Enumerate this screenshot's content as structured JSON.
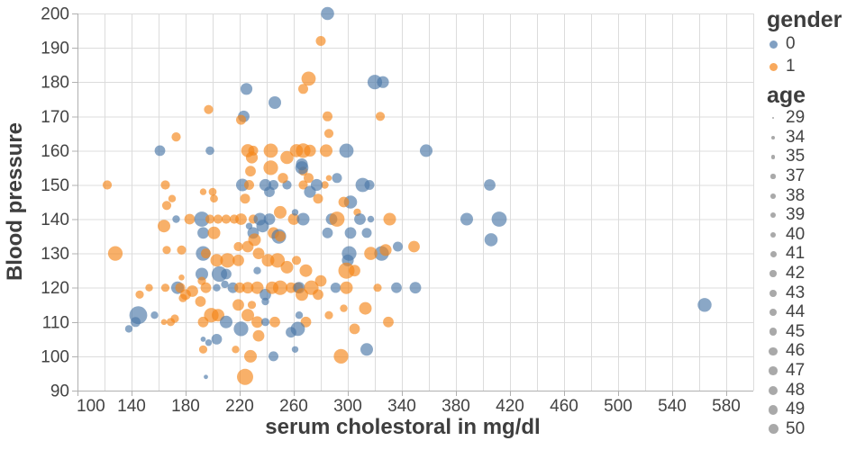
{
  "chart_data": {
    "type": "scatter",
    "title": "",
    "xlabel": "serum cholestoral in mg/dl",
    "ylabel": "Blood pressure",
    "x_domain": [
      100,
      600
    ],
    "y_domain": [
      90,
      200
    ],
    "x_tick_labels": [
      100,
      140,
      180,
      220,
      260,
      300,
      340,
      380,
      420,
      460,
      500,
      540,
      580
    ],
    "x_grid_step": 20,
    "y_tick_step": 10,
    "grid": true,
    "legend_position": "right",
    "legend": {
      "gender": {
        "title": "gender",
        "items": [
          {
            "label": "0",
            "color": "#4c78a8"
          },
          {
            "label": "1",
            "color": "#f58518"
          }
        ]
      },
      "age": {
        "title": "age",
        "items": [
          29,
          34,
          35,
          37,
          38,
          39,
          40,
          41,
          42,
          43,
          44,
          45,
          46,
          47,
          48,
          49,
          50
        ]
      }
    },
    "colors": {
      "gender0": "#4c78a8",
      "gender1": "#f58518",
      "grid": "#dcdcdc",
      "axis": "#b0b0b0",
      "tick_label": "#434343",
      "axis_title": "#3e3e3e",
      "legend_symbol": "#9a9a9a"
    },
    "point_opacity": 0.65,
    "points_format": [
      "serum_cholestoral",
      "blood_pressure",
      "gender",
      "age"
    ],
    "points": [
      [
        225,
        178,
        0,
        55
      ],
      [
        246,
        174,
        0,
        57
      ],
      [
        197,
        172,
        1,
        48
      ],
      [
        223,
        170,
        0,
        54
      ],
      [
        221,
        169,
        1,
        50
      ],
      [
        173,
        164,
        1,
        48
      ],
      [
        161,
        160,
        0,
        52
      ],
      [
        198,
        160,
        0,
        47
      ],
      [
        226,
        160,
        1,
        58
      ],
      [
        230,
        160,
        1,
        50
      ],
      [
        243,
        160,
        1,
        61
      ],
      [
        243,
        155,
        1,
        62
      ],
      [
        228,
        154,
        1,
        52
      ],
      [
        122,
        150,
        1,
        48
      ],
      [
        165,
        150,
        1,
        48
      ],
      [
        222,
        150,
        0,
        57
      ],
      [
        227,
        150,
        1,
        50
      ],
      [
        239,
        150,
        0,
        55
      ],
      [
        245,
        150,
        0,
        50
      ],
      [
        255,
        150,
        0,
        48
      ],
      [
        200,
        148,
        1,
        45
      ],
      [
        252,
        152,
        1,
        51
      ],
      [
        262,
        160,
        1,
        58
      ],
      [
        170,
        146,
        1,
        44
      ],
      [
        193,
        148,
        1,
        42
      ],
      [
        201,
        146,
        1,
        45
      ],
      [
        224,
        146,
        1,
        50
      ],
      [
        242,
        148,
        0,
        52
      ],
      [
        229,
        158,
        1,
        55
      ],
      [
        255,
        158,
        1,
        58
      ],
      [
        283,
        150,
        1,
        44
      ],
      [
        311,
        150,
        0,
        61
      ],
      [
        316,
        150,
        0,
        50
      ],
      [
        292,
        152,
        0,
        50
      ],
      [
        267,
        154,
        1,
        48
      ],
      [
        266,
        156,
        0,
        55
      ],
      [
        285,
        200,
        0,
        58
      ],
      [
        280,
        192,
        1,
        50
      ],
      [
        271,
        181,
        1,
        61
      ],
      [
        267,
        178,
        1,
        50
      ],
      [
        320,
        180,
        0,
        62
      ],
      [
        326,
        180,
        0,
        55
      ],
      [
        324,
        170,
        1,
        48
      ],
      [
        285,
        170,
        1,
        50
      ],
      [
        286,
        165,
        1,
        48
      ],
      [
        267,
        160,
        1,
        62
      ],
      [
        272,
        160,
        1,
        55
      ],
      [
        284,
        160,
        1,
        57
      ],
      [
        299,
        160,
        0,
        61
      ],
      [
        358,
        160,
        0,
        57
      ],
      [
        266,
        155,
        0,
        58
      ],
      [
        271,
        152,
        1,
        50
      ],
      [
        277,
        150,
        0,
        55
      ],
      [
        267,
        150,
        1,
        48
      ],
      [
        272,
        148,
        0,
        55
      ],
      [
        278,
        146,
        1,
        50
      ],
      [
        286,
        152,
        1,
        40
      ],
      [
        405,
        150,
        0,
        54
      ],
      [
        302,
        145,
        0,
        58
      ],
      [
        297,
        145,
        1,
        52
      ],
      [
        166,
        144,
        1,
        48
      ],
      [
        173,
        140,
        0,
        44
      ],
      [
        183,
        140,
        1,
        52
      ],
      [
        192,
        140,
        0,
        63
      ],
      [
        198,
        140,
        1,
        48
      ],
      [
        204,
        140,
        1,
        48
      ],
      [
        210,
        140,
        1,
        48
      ],
      [
        216,
        140,
        1,
        48
      ],
      [
        221,
        140,
        1,
        54
      ],
      [
        227,
        138,
        0,
        42
      ],
      [
        230,
        140,
        1,
        48
      ],
      [
        235,
        140,
        0,
        57
      ],
      [
        242,
        140,
        0,
        54
      ],
      [
        250,
        142,
        1,
        57
      ],
      [
        260,
        140,
        1,
        54
      ],
      [
        261,
        142,
        0,
        42
      ],
      [
        267,
        140,
        0,
        57
      ],
      [
        288,
        140,
        0,
        54
      ],
      [
        292,
        140,
        1,
        63
      ],
      [
        307,
        142,
        1,
        44
      ],
      [
        309,
        140,
        0,
        54
      ],
      [
        317,
        140,
        0,
        42
      ],
      [
        331,
        140,
        1,
        57
      ],
      [
        388,
        140,
        0,
        57
      ],
      [
        412,
        140,
        0,
        63
      ],
      [
        164,
        138,
        1,
        57
      ],
      [
        193,
        136,
        0,
        54
      ],
      [
        201,
        136,
        1,
        57
      ],
      [
        230,
        136,
        0,
        54
      ],
      [
        237,
        138,
        0,
        57
      ],
      [
        245,
        136,
        1,
        54
      ],
      [
        249,
        135,
        0,
        62
      ],
      [
        250,
        135,
        1,
        52
      ],
      [
        231,
        134,
        1,
        57
      ],
      [
        406,
        134,
        0,
        58
      ],
      [
        285,
        136,
        0,
        52
      ],
      [
        302,
        136,
        0,
        54
      ],
      [
        314,
        136,
        0,
        50
      ],
      [
        219,
        132,
        1,
        48
      ],
      [
        226,
        132,
        1,
        54
      ],
      [
        337,
        132,
        0,
        50
      ],
      [
        349,
        132,
        1,
        54
      ],
      [
        325,
        130,
        0,
        62
      ],
      [
        328,
        131,
        1,
        55
      ],
      [
        317,
        130,
        1,
        58
      ],
      [
        301,
        130,
        0,
        62
      ],
      [
        128,
        130,
        1,
        62
      ],
      [
        193,
        130,
        0,
        62
      ],
      [
        195,
        130,
        1,
        50
      ],
      [
        203,
        128,
        1,
        57
      ],
      [
        211,
        128,
        1,
        62
      ],
      [
        219,
        128,
        1,
        54
      ],
      [
        234,
        130,
        1,
        54
      ],
      [
        241,
        128,
        1,
        57
      ],
      [
        248,
        128,
        1,
        62
      ],
      [
        255,
        126,
        1,
        57
      ],
      [
        262,
        128,
        1,
        48
      ],
      [
        300,
        128,
        0,
        55
      ],
      [
        233,
        125,
        0,
        44
      ],
      [
        192,
        124,
        0,
        57
      ],
      [
        205,
        124,
        0,
        64
      ],
      [
        210,
        124,
        0,
        52
      ],
      [
        209,
        121,
        0,
        44
      ],
      [
        299,
        125,
        1,
        66
      ],
      [
        305,
        125,
        1,
        54
      ],
      [
        269,
        125,
        1,
        57
      ],
      [
        280,
        122,
        1,
        54
      ],
      [
        177,
        131,
        1,
        48
      ],
      [
        166,
        131,
        1,
        46
      ],
      [
        177,
        123,
        1,
        40
      ],
      [
        153,
        120,
        1,
        44
      ],
      [
        146,
        118,
        1,
        46
      ],
      [
        165,
        120,
        1,
        46
      ],
      [
        174,
        120,
        0,
        57
      ],
      [
        176,
        120,
        1,
        50
      ],
      [
        180,
        118,
        1,
        52
      ],
      [
        185,
        119,
        1,
        54
      ],
      [
        192,
        122,
        1,
        46
      ],
      [
        195,
        120,
        1,
        52
      ],
      [
        203,
        120,
        0,
        44
      ],
      [
        215,
        120,
        0,
        52
      ],
      [
        220,
        120,
        1,
        52
      ],
      [
        226,
        120,
        1,
        54
      ],
      [
        233,
        120,
        1,
        57
      ],
      [
        239,
        118,
        0,
        54
      ],
      [
        244,
        120,
        1,
        57
      ],
      [
        250,
        120,
        1,
        62
      ],
      [
        258,
        120,
        1,
        52
      ],
      [
        263,
        120,
        1,
        52
      ],
      [
        264,
        120,
        0,
        54
      ],
      [
        291,
        120,
        0,
        51
      ],
      [
        299,
        120,
        1,
        57
      ],
      [
        322,
        120,
        1,
        46
      ],
      [
        336,
        120,
        0,
        52
      ],
      [
        350,
        120,
        0,
        54
      ],
      [
        273,
        120,
        1,
        62
      ],
      [
        266,
        118,
        1,
        57
      ],
      [
        278,
        118,
        1,
        52
      ],
      [
        178,
        117,
        1,
        46
      ],
      [
        191,
        116,
        1,
        52
      ],
      [
        219,
        115,
        1,
        54
      ],
      [
        229,
        115,
        1,
        46
      ],
      [
        239,
        116,
        0,
        44
      ],
      [
        297,
        114,
        1,
        44
      ],
      [
        313,
        114,
        1,
        57
      ],
      [
        286,
        112,
        1,
        46
      ],
      [
        264,
        112,
        0,
        44
      ],
      [
        143,
        110,
        0,
        50
      ],
      [
        138,
        108,
        0,
        44
      ],
      [
        145,
        112,
        0,
        70
      ],
      [
        157,
        112,
        0,
        44
      ],
      [
        164,
        110,
        1,
        40
      ],
      [
        169,
        110,
        1,
        46
      ],
      [
        172,
        111,
        1,
        46
      ],
      [
        193,
        110,
        1,
        52
      ],
      [
        199,
        112,
        1,
        62
      ],
      [
        204,
        112,
        1,
        57
      ],
      [
        210,
        110,
        0,
        57
      ],
      [
        226,
        112,
        1,
        57
      ],
      [
        233,
        110,
        1,
        54
      ],
      [
        239,
        110,
        0,
        46
      ],
      [
        246,
        110,
        1,
        52
      ],
      [
        221,
        108,
        0,
        62
      ],
      [
        234,
        106,
        1,
        54
      ],
      [
        269,
        110,
        1,
        52
      ],
      [
        330,
        110,
        1,
        52
      ],
      [
        263,
        108,
        0,
        61
      ],
      [
        258,
        107,
        0,
        52
      ],
      [
        305,
        108,
        1,
        52
      ],
      [
        193,
        105,
        0,
        38
      ],
      [
        197,
        104,
        0,
        42
      ],
      [
        203,
        105,
        0,
        52
      ],
      [
        217,
        102,
        1,
        44
      ],
      [
        193,
        102,
        1,
        46
      ],
      [
        228,
        100,
        1,
        57
      ],
      [
        245,
        100,
        0,
        50
      ],
      [
        261,
        102,
        0,
        42
      ],
      [
        295,
        100,
        1,
        62
      ],
      [
        314,
        102,
        0,
        57
      ],
      [
        195,
        94,
        0,
        36
      ],
      [
        224,
        94,
        1,
        66
      ],
      [
        564,
        115,
        0,
        60
      ]
    ]
  }
}
